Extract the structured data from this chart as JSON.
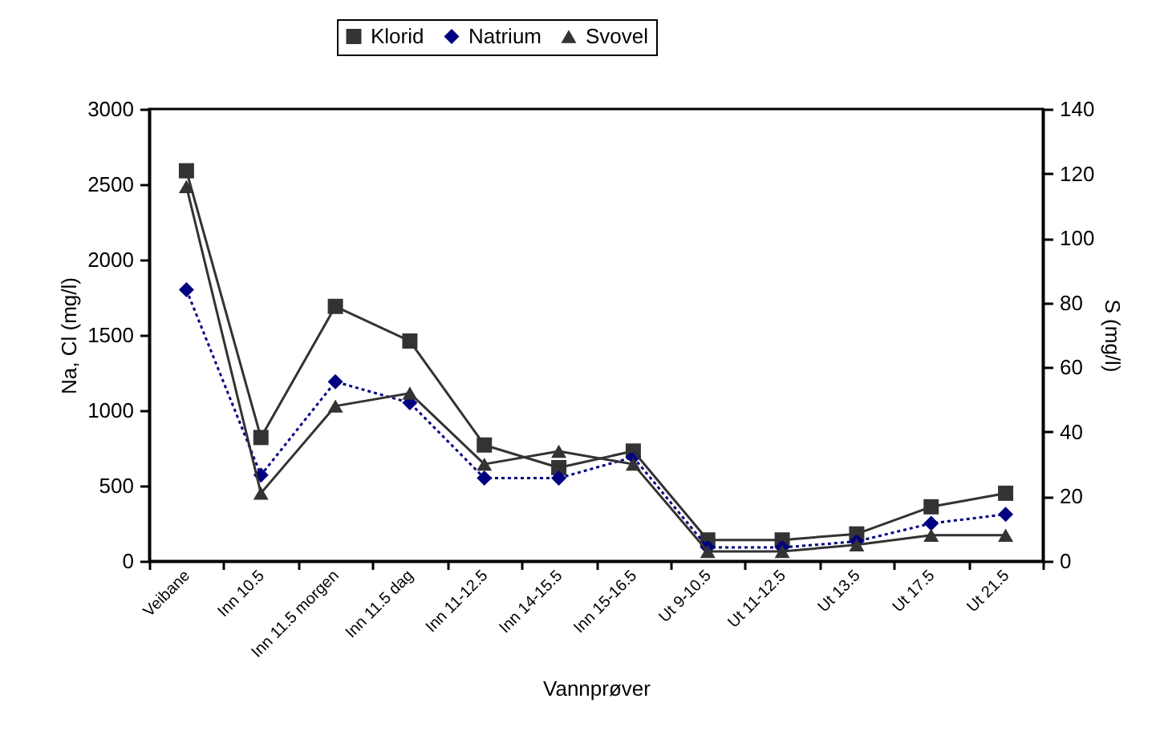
{
  "chart_data": {
    "type": "line",
    "xlabel": "Vannprøver",
    "ylabel": "Na, Cl (mg/l)",
    "y2label": "S (mg/l)",
    "categories": [
      "Veibane",
      "Inn 10.5",
      "Inn 11.5 morgen",
      "Inn 11.5 dag",
      "Inn 11-12.5",
      "Inn 14-15.5",
      "Inn 15-16.5",
      "Ut 9-10.5",
      "Ut 11-12.5",
      "Ut 13.5",
      "Ut 17.5",
      "Ut 21.5"
    ],
    "series": [
      {
        "name": "Klorid",
        "color": "#333333",
        "marker": "square",
        "line_style": "solid",
        "values": [
          2590,
          820,
          1690,
          1460,
          770,
          620,
          730,
          140,
          140,
          180,
          360,
          450
        ]
      },
      {
        "name": "Natrium",
        "color": "#000080",
        "marker": "diamond",
        "line_style": "dotted",
        "values": [
          1800,
          570,
          1190,
          1050,
          550,
          550,
          690,
          90,
          90,
          130,
          250,
          310
        ]
      },
      {
        "name": "Svovel",
        "color": "#333333",
        "marker": "triangle",
        "line_style": "solid",
        "axis": "y2",
        "values": [
          116,
          21,
          48,
          52,
          30,
          34,
          30,
          3,
          3,
          5,
          8,
          8
        ]
      }
    ],
    "ylim": [
      0,
      3000
    ],
    "yticks": [
      0,
      500,
      1000,
      1500,
      2000,
      2500,
      3000
    ],
    "y2lim": [
      0,
      140
    ],
    "y2ticks": [
      0,
      20,
      40,
      60,
      80,
      100,
      120,
      140
    ],
    "grid": false,
    "legend": "top"
  }
}
